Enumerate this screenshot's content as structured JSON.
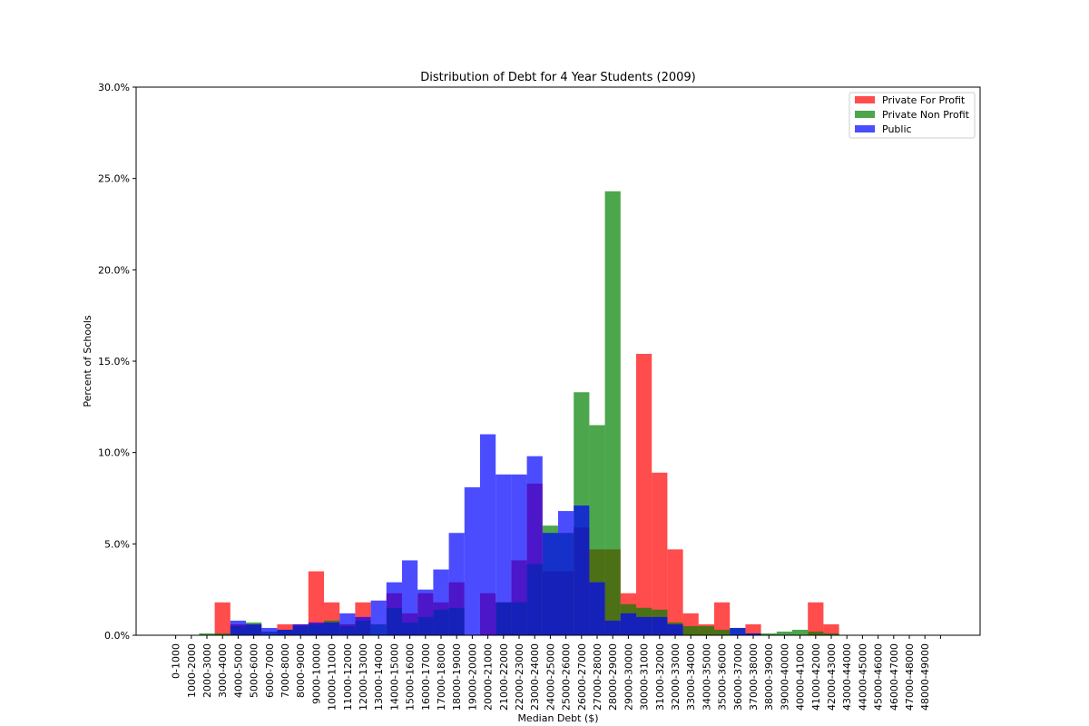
{
  "chart_data": {
    "type": "bar",
    "title": "Distribution of Debt for 4 Year Students (2009)",
    "xlabel": "Median Debt ($)",
    "ylabel": "Percent of Schools",
    "ylim": [
      0,
      30
    ],
    "yticks": [
      "0.0%",
      "5.0%",
      "10.0%",
      "15.0%",
      "20.0%",
      "25.0%",
      "30.0%"
    ],
    "grid": false,
    "legend_position": "top-right",
    "categories": [
      "0-1000",
      "1000-2000",
      "2000-3000",
      "3000-4000",
      "4000-5000",
      "5000-6000",
      "6000-7000",
      "7000-8000",
      "8000-9000",
      "9000-10000",
      "10000-11000",
      "11000-12000",
      "12000-13000",
      "13000-14000",
      "14000-15000",
      "15000-16000",
      "16000-17000",
      "17000-18000",
      "18000-19000",
      "19000-20000",
      "20000-21000",
      "21000-22000",
      "22000-23000",
      "23000-24000",
      "24000-25000",
      "25000-26000",
      "26000-27000",
      "27000-28000",
      "28000-29000",
      "29000-30000",
      "30000-31000",
      "31000-32000",
      "32000-33000",
      "33000-34000",
      "34000-35000",
      "35000-36000",
      "36000-37000",
      "37000-38000",
      "38000-39000",
      "39000-40000",
      "40000-41000",
      "41000-42000",
      "42000-43000",
      "43000-44000",
      "44000-45000",
      "45000-46000",
      "46000-47000",
      "47000-48000",
      "48000-49000"
    ],
    "series": [
      {
        "name": "Private For Profit",
        "color": "#ff0000",
        "opacity": 0.7,
        "values": [
          0,
          0,
          0,
          1.8,
          0.6,
          0.6,
          0,
          0.6,
          0.6,
          3.5,
          1.8,
          0.6,
          1.8,
          0,
          2.3,
          1.2,
          2.3,
          1.8,
          2.9,
          0,
          2.3,
          1.8,
          4.1,
          8.3,
          3.5,
          3.5,
          5.9,
          4.7,
          4.7,
          2.3,
          15.4,
          8.9,
          4.7,
          1.2,
          0.6,
          1.8,
          0,
          0.6,
          0,
          0,
          0,
          1.8,
          0.6,
          0,
          0,
          0,
          0,
          0,
          0
        ]
      },
      {
        "name": "Private Non Profit",
        "color": "#008000",
        "opacity": 0.7,
        "values": [
          0,
          0,
          0.1,
          0.1,
          0.5,
          0.7,
          0.2,
          0.3,
          0.5,
          0.6,
          0.8,
          0.5,
          0.8,
          0.6,
          1.5,
          0.7,
          1.0,
          1.4,
          1.5,
          0,
          0,
          1.8,
          1.8,
          3.9,
          6.0,
          5.6,
          13.3,
          11.5,
          24.3,
          1.7,
          1.5,
          1.4,
          0.7,
          0.5,
          0.5,
          0.3,
          0.4,
          0.1,
          0.1,
          0.2,
          0.3,
          0.2,
          0.1,
          0,
          0,
          0,
          0,
          0,
          0
        ]
      },
      {
        "name": "Public",
        "color": "#0000ff",
        "opacity": 0.7,
        "values": [
          0,
          0,
          0,
          0,
          0.8,
          0.6,
          0.4,
          0.3,
          0.6,
          0.7,
          0.7,
          1.2,
          1.0,
          1.9,
          2.9,
          4.1,
          2.5,
          3.6,
          5.6,
          8.1,
          11.0,
          8.8,
          8.8,
          9.8,
          5.6,
          6.8,
          7.1,
          2.9,
          0.8,
          1.2,
          1.0,
          1.0,
          0.6,
          0,
          0,
          0,
          0.4,
          0.1,
          0,
          0,
          0,
          0,
          0,
          0,
          0,
          0,
          0,
          0,
          0
        ]
      }
    ]
  }
}
